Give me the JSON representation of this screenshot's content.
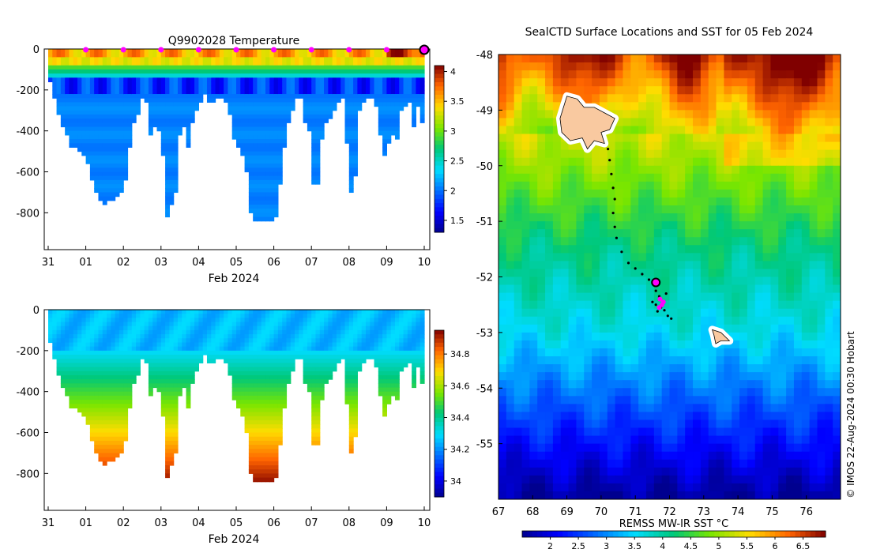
{
  "chart_data": [
    {
      "type": "heatmap",
      "name": "temperature-section",
      "title": "Q9902028  Temperature",
      "xlabel": "Feb 2024",
      "ylabel": "",
      "x_ticks": [
        "31",
        "01",
        "02",
        "03",
        "04",
        "05",
        "06",
        "07",
        "08",
        "09",
        "10"
      ],
      "x_range_days": [
        0,
        10
      ],
      "y_ticks": [
        0,
        -200,
        -400,
        -600,
        -800
      ],
      "ylim": [
        -980,
        0
      ],
      "colorbar": {
        "min": 1.3,
        "max": 4.1,
        "ticks": [
          "1.5",
          "2",
          "2.5",
          "3",
          "3.5",
          "4"
        ],
        "tick_values": [
          1.5,
          2,
          2.5,
          3,
          3.5,
          4
        ]
      },
      "surfacing_marker_days": [
        1,
        2,
        3,
        4,
        5,
        6,
        7,
        8,
        9
      ],
      "latest_marker_day": 10,
      "profile_max_depths": [
        160,
        240,
        320,
        380,
        420,
        470,
        480,
        500,
        520,
        550,
        640,
        700,
        740,
        750,
        730,
        740,
        720,
        700,
        640,
        480,
        360,
        320,
        230,
        260,
        410,
        380,
        400,
        520,
        820,
        750,
        700,
        410,
        380,
        480,
        360,
        300,
        250,
        220,
        250,
        260,
        240,
        240,
        250,
        320,
        440,
        480,
        520,
        600,
        800,
        830,
        830,
        830,
        830,
        830,
        820,
        650,
        470,
        360,
        300,
        240,
        230,
        360,
        400,
        660,
        650,
        440,
        360,
        330,
        300,
        250,
        240,
        450,
        700,
        620,
        300,
        260,
        240,
        230,
        280,
        420,
        510,
        460,
        420,
        430,
        300,
        270,
        260,
        380,
        270,
        360
      ]
    },
    {
      "type": "heatmap",
      "name": "salinity-section",
      "title": "",
      "xlabel": "Feb 2024",
      "ylabel": "",
      "x_ticks": [
        "31",
        "01",
        "02",
        "03",
        "04",
        "05",
        "06",
        "07",
        "08",
        "09",
        "10"
      ],
      "x_range_days": [
        0,
        10
      ],
      "y_ticks": [
        0,
        -200,
        -400,
        -600,
        -800
      ],
      "ylim": [
        -980,
        0
      ],
      "colorbar": {
        "min": 33.9,
        "max": 34.95,
        "ticks": [
          "34",
          "34.2",
          "34.4",
          "34.6",
          "34.8"
        ],
        "tick_values": [
          34,
          34.2,
          34.4,
          34.6,
          34.8
        ]
      }
    },
    {
      "type": "heatmap",
      "name": "sst-map",
      "title": "SealCTD Surface Locations and SST for 05 Feb 2024",
      "xlabel": "",
      "ylabel": "",
      "x_ticks": [
        "67",
        "68",
        "69",
        "70",
        "71",
        "72",
        "73",
        "74",
        "75",
        "76"
      ],
      "x_tick_values": [
        67,
        68,
        69,
        70,
        71,
        72,
        73,
        74,
        75,
        76
      ],
      "xlim": [
        67,
        77
      ],
      "y_ticks": [
        "-48",
        "-49",
        "-50",
        "-51",
        "-52",
        "-53",
        "-54",
        "-55"
      ],
      "y_tick_values": [
        -48,
        -49,
        -50,
        -51,
        -52,
        -53,
        -54,
        -55
      ],
      "ylim": [
        -56,
        -48
      ],
      "colorbar": {
        "label": "REMSS MW-IR SST °C",
        "min": 1.5,
        "max": 6.9,
        "ticks": [
          "2",
          "2.5",
          "3",
          "3.5",
          "4",
          "4.5",
          "5",
          "5.5",
          "6",
          "6.5"
        ],
        "tick_values": [
          2,
          2.5,
          3,
          3.5,
          4,
          4.5,
          5,
          5.5,
          6,
          6.5
        ]
      },
      "track_lonlat": [
        [
          70.2,
          -49.7
        ],
        [
          70.25,
          -49.9
        ],
        [
          70.3,
          -50.15
        ],
        [
          70.35,
          -50.4
        ],
        [
          70.4,
          -50.6
        ],
        [
          70.35,
          -50.85
        ],
        [
          70.4,
          -51.1
        ],
        [
          70.45,
          -51.3
        ],
        [
          70.6,
          -51.55
        ],
        [
          70.8,
          -51.75
        ],
        [
          71.0,
          -51.85
        ],
        [
          71.2,
          -51.95
        ],
        [
          71.4,
          -52.05
        ],
        [
          71.55,
          -52.15
        ],
        [
          71.6,
          -52.25
        ],
        [
          71.7,
          -52.35
        ],
        [
          71.8,
          -52.45
        ],
        [
          71.75,
          -52.55
        ],
        [
          71.6,
          -52.5
        ],
        [
          71.85,
          -52.6
        ],
        [
          71.95,
          -52.7
        ],
        [
          72.05,
          -52.75
        ],
        [
          71.5,
          -52.45
        ],
        [
          71.65,
          -52.62
        ],
        [
          71.9,
          -52.3
        ]
      ],
      "latest_lonlat": [
        71.6,
        -52.1
      ],
      "islands": [
        {
          "name": "Heard-like large island",
          "outline": [
            [
              69.0,
              -48.75
            ],
            [
              69.3,
              -48.8
            ],
            [
              69.5,
              -48.95
            ],
            [
              69.8,
              -48.95
            ],
            [
              70.1,
              -49.05
            ],
            [
              70.4,
              -49.15
            ],
            [
              70.25,
              -49.35
            ],
            [
              70.0,
              -49.4
            ],
            [
              70.1,
              -49.6
            ],
            [
              69.8,
              -49.55
            ],
            [
              69.6,
              -49.7
            ],
            [
              69.45,
              -49.5
            ],
            [
              69.1,
              -49.55
            ],
            [
              68.85,
              -49.4
            ],
            [
              68.8,
              -49.15
            ]
          ]
        },
        {
          "name": "small island",
          "outline": [
            [
              73.25,
              -52.95
            ],
            [
              73.5,
              -53.0
            ],
            [
              73.75,
              -53.15
            ],
            [
              73.5,
              -53.15
            ],
            [
              73.35,
              -53.2
            ],
            [
              73.3,
              -53.05
            ]
          ]
        }
      ]
    }
  ],
  "credit": "© IMOS 22-Aug-2024 00:30 Hobart",
  "colors": {
    "island_fill": "#f9c9a0",
    "marker_magenta": "#ff00ff",
    "track_dot": "#000000"
  }
}
